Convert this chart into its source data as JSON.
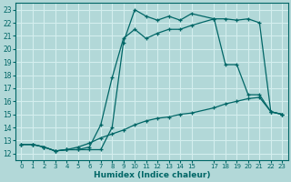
{
  "xlabel": "Humidex (Indice chaleur)",
  "bg_color": "#b2d8d8",
  "grid_color": "#d4eeee",
  "line_color": "#006666",
  "xlim": [
    -0.5,
    23.5
  ],
  "ylim": [
    11.5,
    23.5
  ],
  "yticks": [
    12,
    13,
    14,
    15,
    16,
    17,
    18,
    19,
    20,
    21,
    22,
    23
  ],
  "xtick_positions": [
    0,
    1,
    2,
    3,
    4,
    5,
    6,
    7,
    8,
    9,
    10,
    11,
    12,
    13,
    14,
    15,
    17,
    18,
    19,
    20,
    21,
    22,
    23
  ],
  "xtick_labels": [
    "0",
    "1",
    "2",
    "3",
    "4",
    "5",
    "6",
    "7",
    "8",
    "9",
    "10",
    "11",
    "12",
    "13",
    "14",
    "15",
    "17",
    "18",
    "19",
    "20",
    "21",
    "22",
    "23"
  ],
  "line1_x": [
    0,
    1,
    2,
    3,
    4,
    5,
    6,
    7,
    8,
    9,
    10,
    11,
    12,
    13,
    14,
    15,
    17,
    18,
    19,
    20,
    21,
    22,
    23
  ],
  "line1_y": [
    12.7,
    12.7,
    12.5,
    12.2,
    12.3,
    12.3,
    12.3,
    12.3,
    14.0,
    20.5,
    23.0,
    22.5,
    22.2,
    22.5,
    22.2,
    22.7,
    22.3,
    22.3,
    22.2,
    22.3,
    22.0,
    15.2,
    15.0
  ],
  "line2_x": [
    0,
    1,
    2,
    3,
    4,
    5,
    6,
    7,
    8,
    9,
    10,
    11,
    12,
    13,
    14,
    15,
    17,
    18,
    19,
    20,
    21,
    22,
    23
  ],
  "line2_y": [
    12.7,
    12.7,
    12.5,
    12.2,
    12.3,
    12.3,
    12.5,
    14.2,
    17.8,
    20.8,
    21.5,
    20.8,
    21.2,
    21.5,
    21.5,
    21.8,
    22.3,
    18.8,
    18.8,
    16.5,
    16.5,
    15.2,
    15.0
  ],
  "line3_x": [
    0,
    1,
    2,
    3,
    4,
    5,
    6,
    7,
    8,
    9,
    10,
    11,
    12,
    13,
    14,
    15,
    17,
    18,
    19,
    20,
    21,
    22,
    23
  ],
  "line3_y": [
    12.7,
    12.7,
    12.5,
    12.2,
    12.3,
    12.5,
    12.8,
    13.2,
    13.5,
    13.8,
    14.2,
    14.5,
    14.7,
    14.8,
    15.0,
    15.1,
    15.5,
    15.8,
    16.0,
    16.2,
    16.3,
    15.2,
    15.0
  ]
}
